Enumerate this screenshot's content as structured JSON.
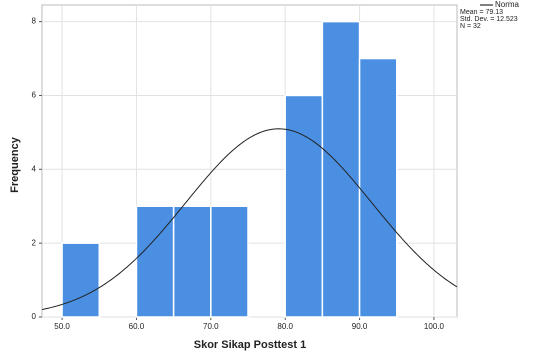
{
  "chart_data": {
    "type": "histogram",
    "x_label": "Skor Sikap Posttest 1",
    "y_label": "Frequency",
    "bins": [
      50,
      55,
      60,
      65,
      70,
      75,
      80,
      85,
      90,
      95
    ],
    "values": [
      2,
      0,
      3,
      3,
      3,
      0,
      6,
      8,
      7
    ],
    "color": "#4a8fe2",
    "xlim": [
      47.3,
      103.1
    ],
    "ylim": [
      0,
      8.45
    ],
    "xticks": [
      {
        "value": 50,
        "label": "50.0"
      },
      {
        "value": 60,
        "label": "60.0"
      },
      {
        "value": 70,
        "label": "70.0"
      },
      {
        "value": 80,
        "label": "80.0"
      },
      {
        "value": 90,
        "label": "90.0"
      },
      {
        "value": 100,
        "label": "100.0"
      }
    ],
    "yticks": [
      0,
      2,
      4,
      6,
      8
    ],
    "grid": true,
    "legend": "Norma",
    "normal": [
      {
        "value": 79.13,
        "label": "Mean = 79.13"
      },
      {
        "value": 12.523,
        "label": "Std. Dev. = 12.523"
      },
      {
        "value": 32,
        "label": "N = 32"
      }
    ]
  }
}
